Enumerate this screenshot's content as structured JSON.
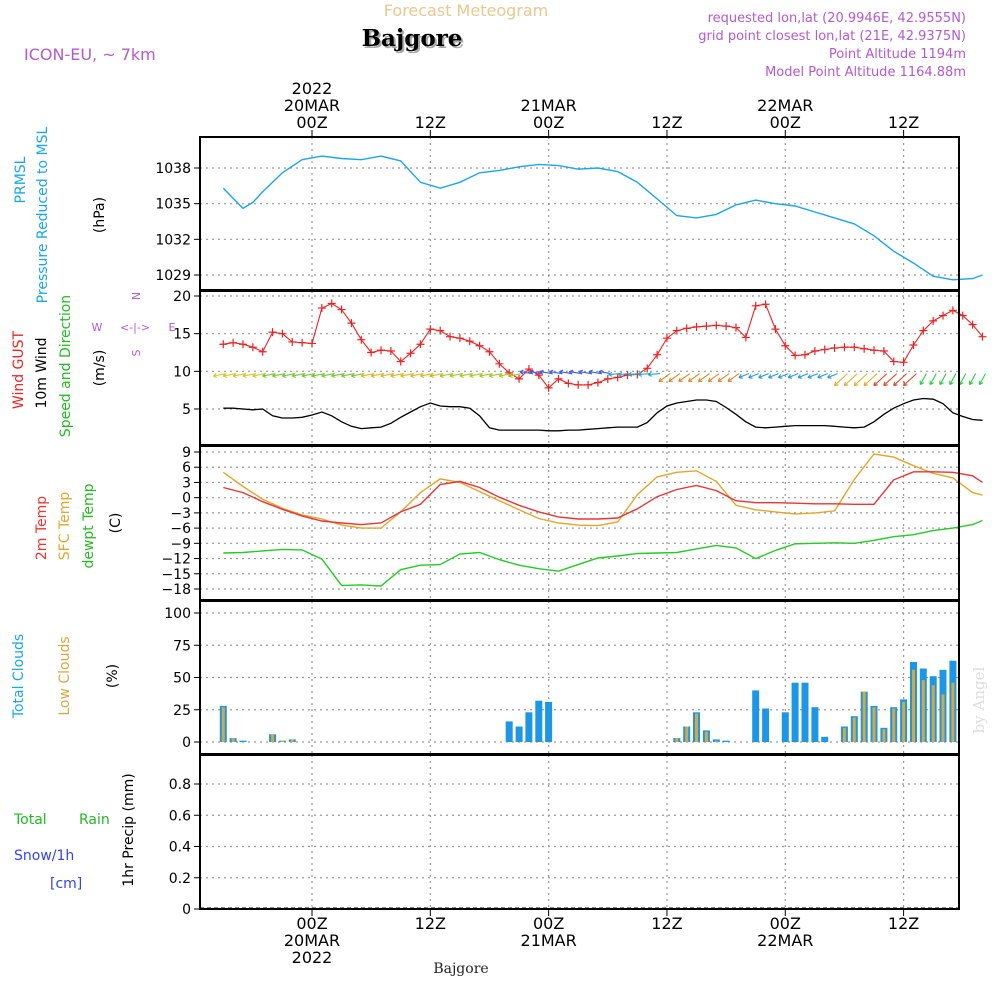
{
  "header": {
    "product": "Forecast Meteogram",
    "location": "Bajgore",
    "model": "ICON-EU, ~ 7km",
    "requested": "requested lon,lat (20.9946E, 42.9555N)",
    "grid_point": "grid point closest lon,lat (21E, 42.9375N)",
    "point_altitude": "Point Altitude 1194m",
    "model_altitude": "Model Point Altitude 1164.88m"
  },
  "footer": {
    "location": "Bajgore",
    "watermark": "by Angel"
  },
  "time_axis": {
    "top": [
      {
        "hour": 24,
        "lines": [
          "2022",
          "20MAR",
          "00Z"
        ]
      },
      {
        "hour": 36,
        "lines": [
          "12Z"
        ]
      },
      {
        "hour": 48,
        "lines": [
          "21MAR",
          "00Z"
        ]
      },
      {
        "hour": 60,
        "lines": [
          "12Z"
        ]
      },
      {
        "hour": 72,
        "lines": [
          "22MAR",
          "00Z"
        ]
      },
      {
        "hour": 84,
        "lines": [
          "12Z"
        ]
      }
    ],
    "bottom": [
      {
        "hour": 24,
        "lines": [
          "00Z",
          "20MAR",
          "2022"
        ]
      },
      {
        "hour": 36,
        "lines": [
          "12Z"
        ]
      },
      {
        "hour": 48,
        "lines": [
          "00Z",
          "21MAR"
        ]
      },
      {
        "hour": 60,
        "lines": [
          "12Z"
        ]
      },
      {
        "hour": 72,
        "lines": [
          "00Z",
          "22MAR"
        ]
      },
      {
        "hour": 84,
        "lines": [
          "12Z"
        ]
      }
    ]
  },
  "panel_labels": {
    "pressure": {
      "lines": [
        "PRMSL",
        "Pressure Reduced to MSL"
      ],
      "unit": "(hPa)"
    },
    "wind": {
      "gust": "Wind GUST",
      "wind10": "10m Wind",
      "speed_dir": "Speed and Direction",
      "unit": "(m/s)",
      "compass": [
        "N",
        "W",
        "E",
        "S",
        "<-|->"
      ]
    },
    "temp": {
      "t2m": "2m Temp",
      "sfc": "SFC Temp",
      "dewpt": "dewpt Temp",
      "unit": "(C)"
    },
    "clouds": {
      "total": "Total Clouds",
      "low": "Low Clouds",
      "unit": "(%)"
    },
    "precip": {
      "total": "Total",
      "rain": "Rain",
      "snow": "Snow/1h",
      "snow_unit": "[cm]",
      "axis": "1hr Precip (mm)"
    }
  },
  "colors": {
    "pressure": "#1aa5ee",
    "gust": "#ee2222",
    "wind10": "#000000",
    "t2m": "#ee3333",
    "sfc": "#e3a62a",
    "dewpt": "#22cc22",
    "total_clouds": "#1e96e6",
    "low_clouds": "#d6a840",
    "rain": "#22bb22",
    "snow": "#3344ee",
    "header_purple": "#b45ad0",
    "header_orange": "#e8c890"
  },
  "chart_data": [
    {
      "type": "line",
      "title": "PRMSL Pressure Reduced to MSL",
      "ylabel": "(hPa)",
      "ylim": [
        1028,
        1040.5
      ],
      "yticks": [
        1029,
        1032,
        1035,
        1038
      ],
      "x_unit": "hours from 19MAR 00Z",
      "x": [
        15,
        17,
        18,
        19,
        21,
        23,
        25,
        27,
        29,
        31,
        33,
        35,
        37,
        39,
        41,
        43,
        45,
        47,
        49,
        51,
        53,
        55,
        57,
        59,
        61,
        63,
        65,
        67,
        69,
        71,
        73,
        75,
        77,
        79,
        81,
        83,
        85,
        87,
        89,
        91,
        92
      ],
      "series": [
        {
          "name": "PRMSL",
          "values": [
            1036.3,
            1034.6,
            1035.1,
            1036.0,
            1037.6,
            1038.7,
            1039.0,
            1038.8,
            1038.7,
            1039.0,
            1038.6,
            1036.8,
            1036.3,
            1036.8,
            1037.6,
            1037.8,
            1038.1,
            1038.3,
            1038.2,
            1037.9,
            1038.0,
            1037.7,
            1036.8,
            1035.4,
            1034.0,
            1033.8,
            1034.1,
            1034.9,
            1035.3,
            1035.0,
            1034.8,
            1034.3,
            1033.8,
            1033.3,
            1032.3,
            1031.0,
            1030.0,
            1028.9,
            1028.6,
            1028.7,
            1029.0
          ]
        }
      ]
    },
    {
      "type": "line",
      "title": "Wind GUST / 10m Wind Speed and Direction",
      "ylabel": "(m/s)",
      "ylim": [
        0,
        20.5
      ],
      "yticks": [
        5,
        10,
        15,
        20
      ],
      "x_unit": "hours from 19MAR 00Z",
      "x": [
        15,
        16,
        17,
        18,
        19,
        20,
        21,
        22,
        23,
        24,
        25,
        26,
        27,
        28,
        29,
        30,
        31,
        32,
        33,
        34,
        35,
        36,
        37,
        38,
        39,
        40,
        41,
        42,
        43,
        44,
        45,
        46,
        47,
        48,
        49,
        50,
        51,
        52,
        53,
        54,
        55,
        56,
        57,
        58,
        59,
        60,
        61,
        62,
        63,
        64,
        65,
        66,
        67,
        68,
        69,
        70,
        71,
        72,
        73,
        74,
        75,
        76,
        77,
        78,
        79,
        80,
        81,
        82,
        83,
        84,
        85,
        86,
        87,
        88,
        89,
        90,
        91,
        92
      ],
      "series": [
        {
          "name": "Wind GUST",
          "values": [
            13.6,
            13.8,
            13.6,
            13.2,
            12.6,
            15.2,
            15.0,
            13.9,
            13.8,
            13.7,
            18.4,
            19.0,
            18.2,
            16.4,
            14.2,
            12.5,
            12.8,
            12.7,
            11.3,
            12.4,
            13.6,
            15.6,
            15.4,
            14.6,
            14.4,
            14.0,
            13.4,
            12.6,
            11.0,
            9.8,
            9.0,
            10.3,
            9.5,
            7.8,
            9.0,
            8.4,
            8.2,
            8.2,
            8.5,
            9.0,
            9.2,
            9.5,
            9.6,
            10.4,
            12.2,
            14.4,
            15.4,
            15.7,
            15.9,
            16.0,
            16.1,
            16.0,
            15.8,
            14.5,
            18.7,
            18.9,
            15.6,
            13.4,
            12.1,
            12.2,
            12.7,
            12.9,
            13.1,
            13.2,
            13.2,
            13.0,
            12.8,
            12.7,
            11.3,
            11.2,
            13.5,
            15.4,
            16.7,
            17.4,
            18.1,
            17.4,
            16.2,
            14.6
          ],
          "extra_point": {
            "x": 92.0,
            "y": 16.3
          }
        },
        {
          "name": "10m Wind",
          "values": [
            5.1,
            5.1,
            5.0,
            4.9,
            5.0,
            4.1,
            3.8,
            3.8,
            3.9,
            4.2,
            4.6,
            4.1,
            3.3,
            2.7,
            2.4,
            2.5,
            2.6,
            3.1,
            3.9,
            4.6,
            5.3,
            5.8,
            5.4,
            5.3,
            5.3,
            5.1,
            4.1,
            2.5,
            2.2,
            2.2,
            2.2,
            2.2,
            2.2,
            2.1,
            2.1,
            2.2,
            2.2,
            2.3,
            2.4,
            2.5,
            2.6,
            2.6,
            2.6,
            3.2,
            4.5,
            5.4,
            5.8,
            6.0,
            6.2,
            6.2,
            6.0,
            5.2,
            4.3,
            3.3,
            2.6,
            2.5,
            2.6,
            2.7,
            2.8,
            2.8,
            2.8,
            2.8,
            2.7,
            2.6,
            2.5,
            2.6,
            3.3,
            4.3,
            5.1,
            5.7,
            6.2,
            6.4,
            6.3,
            5.7,
            4.5,
            4.0,
            3.6,
            3.5
          ]
        }
      ],
      "direction_barbs": "colored arrows along y=9.5 (not numeric)"
    },
    {
      "type": "line",
      "title": "2m Temp / SFC Temp / dewpt Temp",
      "ylabel": "(C)",
      "ylim": [
        -19.5,
        10.5
      ],
      "yticks": [
        -18,
        -15,
        -12,
        -9,
        -6,
        -3,
        0,
        3,
        6,
        9
      ],
      "x_unit": "hours from 19MAR 00Z",
      "x": [
        15,
        17,
        19,
        21,
        23,
        25,
        27,
        29,
        31,
        33,
        35,
        37,
        39,
        41,
        43,
        45,
        47,
        49,
        51,
        53,
        55,
        57,
        59,
        61,
        63,
        65,
        67,
        69,
        71,
        73,
        75,
        77,
        79,
        81,
        83,
        85,
        87,
        89,
        91,
        92
      ],
      "series": [
        {
          "name": "2m Temp",
          "values": [
            2.0,
            1.0,
            -0.8,
            -2.3,
            -3.6,
            -4.6,
            -5.0,
            -5.3,
            -5.0,
            -2.8,
            -1.3,
            2.6,
            3.2,
            2.0,
            0.1,
            -1.5,
            -2.8,
            -3.8,
            -4.2,
            -4.2,
            -4.0,
            -2.2,
            0.2,
            1.6,
            2.4,
            1.4,
            -0.6,
            -1.0,
            -1.0,
            -1.1,
            -1.2,
            -1.2,
            -1.3,
            -1.3,
            3.5,
            5.1,
            5.1,
            5.0,
            4.3,
            3.0
          ]
        },
        {
          "name": "SFC Temp",
          "values": [
            5.0,
            2.2,
            -0.3,
            -2.1,
            -3.4,
            -4.2,
            -5.4,
            -6.0,
            -6.0,
            -2.8,
            1.0,
            3.7,
            3.0,
            1.2,
            -0.6,
            -2.4,
            -4.1,
            -5.0,
            -5.4,
            -5.5,
            -4.8,
            0.6,
            4.1,
            5.0,
            5.3,
            3.2,
            -1.5,
            -2.4,
            -2.8,
            -3.2,
            -3.0,
            -2.6,
            3.6,
            8.6,
            8.0,
            6.3,
            4.8,
            3.9,
            1.0,
            0.5
          ]
        },
        {
          "name": "dewpt Temp",
          "values": [
            -10.9,
            -10.8,
            -10.5,
            -10.2,
            -10.3,
            -12.1,
            -17.3,
            -17.2,
            -17.4,
            -14.2,
            -13.3,
            -13.2,
            -11.1,
            -10.8,
            -12.2,
            -13.3,
            -14.0,
            -14.5,
            -13.2,
            -11.9,
            -11.5,
            -11.0,
            -10.9,
            -10.8,
            -10.1,
            -9.4,
            -9.9,
            -12.0,
            -10.4,
            -9.1,
            -9.0,
            -8.9,
            -9.0,
            -8.4,
            -7.7,
            -7.3,
            -6.5,
            -6.0,
            -5.3,
            -4.5
          ]
        }
      ]
    },
    {
      "type": "bar",
      "title": "Total Clouds / Low Clouds",
      "ylabel": "(%)",
      "ylim": [
        -3,
        105
      ],
      "yticks": [
        0,
        25,
        50,
        75,
        100
      ],
      "x_unit": "hours from 19MAR 00Z",
      "x": [
        15,
        16,
        17,
        18,
        19,
        20,
        21,
        22,
        44,
        45,
        46,
        47,
        48,
        49,
        61,
        62,
        63,
        64,
        65,
        66,
        67,
        68,
        69,
        70,
        71,
        72,
        73,
        74,
        75,
        76,
        77,
        78,
        79,
        80,
        81,
        82,
        83,
        84,
        85,
        86,
        87,
        88,
        89,
        90,
        91,
        92
      ],
      "series": [
        {
          "name": "Total Clouds",
          "values": [
            28,
            3,
            1,
            0,
            0,
            6,
            1,
            2,
            16,
            12,
            23,
            32,
            31,
            0,
            3,
            12,
            23,
            9,
            2,
            1,
            0,
            0,
            40,
            26,
            0,
            23,
            46,
            46,
            27,
            4,
            0,
            12,
            20,
            39,
            28,
            11,
            27,
            33,
            62,
            57,
            51,
            56,
            63,
            0,
            0,
            0
          ]
        },
        {
          "name": "Low Clouds",
          "values": [
            27,
            3,
            0,
            0,
            0,
            6,
            1,
            2,
            0,
            0,
            0,
            0,
            0,
            0,
            3,
            12,
            22,
            8,
            1,
            0,
            0,
            0,
            0,
            0,
            0,
            0,
            0,
            0,
            0,
            0,
            0,
            11,
            19,
            39,
            27,
            10,
            26,
            31,
            56,
            48,
            44,
            37,
            46,
            0,
            0,
            0
          ]
        }
      ]
    },
    {
      "type": "line",
      "title": "1hr Precip",
      "ylabel": "1hr Precip (mm)",
      "ylim": [
        0,
        0.97
      ],
      "yticks": [
        0,
        0.2,
        0.4,
        0.6,
        0.8
      ],
      "x_unit": "hours from 19MAR 00Z",
      "series": [
        {
          "name": "Total Rain",
          "values": []
        },
        {
          "name": "Snow/1h",
          "values": []
        }
      ]
    }
  ]
}
